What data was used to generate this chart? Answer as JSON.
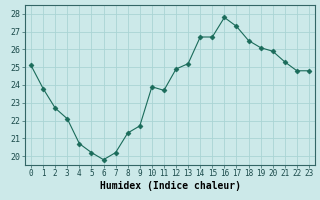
{
  "x": [
    0,
    1,
    2,
    3,
    4,
    5,
    6,
    7,
    8,
    9,
    10,
    11,
    12,
    13,
    14,
    15,
    16,
    17,
    18,
    19,
    20,
    21,
    22,
    23
  ],
  "y": [
    25.1,
    23.8,
    22.7,
    22.1,
    20.7,
    20.2,
    19.8,
    20.2,
    21.3,
    21.7,
    23.9,
    23.7,
    24.9,
    25.2,
    26.7,
    26.7,
    27.8,
    27.3,
    26.5,
    26.1,
    25.9,
    25.3,
    24.8,
    24.8
  ],
  "line_color": "#1a6b5a",
  "marker": "D",
  "marker_size": 2.5,
  "bg_color": "#cce9e9",
  "grid_color": "#aad4d4",
  "xlabel": "Humidex (Indice chaleur)",
  "ylim": [
    19.5,
    28.5
  ],
  "yticks": [
    20,
    21,
    22,
    23,
    24,
    25,
    26,
    27,
    28
  ],
  "xlim": [
    -0.5,
    23.5
  ],
  "xticks": [
    0,
    1,
    2,
    3,
    4,
    5,
    6,
    7,
    8,
    9,
    10,
    11,
    12,
    13,
    14,
    15,
    16,
    17,
    18,
    19,
    20,
    21,
    22,
    23
  ],
  "xtick_labels": [
    "0",
    "1",
    "2",
    "3",
    "4",
    "5",
    "6",
    "7",
    "8",
    "9",
    "10",
    "11",
    "12",
    "13",
    "14",
    "15",
    "16",
    "17",
    "18",
    "19",
    "20",
    "21",
    "22",
    "23"
  ]
}
